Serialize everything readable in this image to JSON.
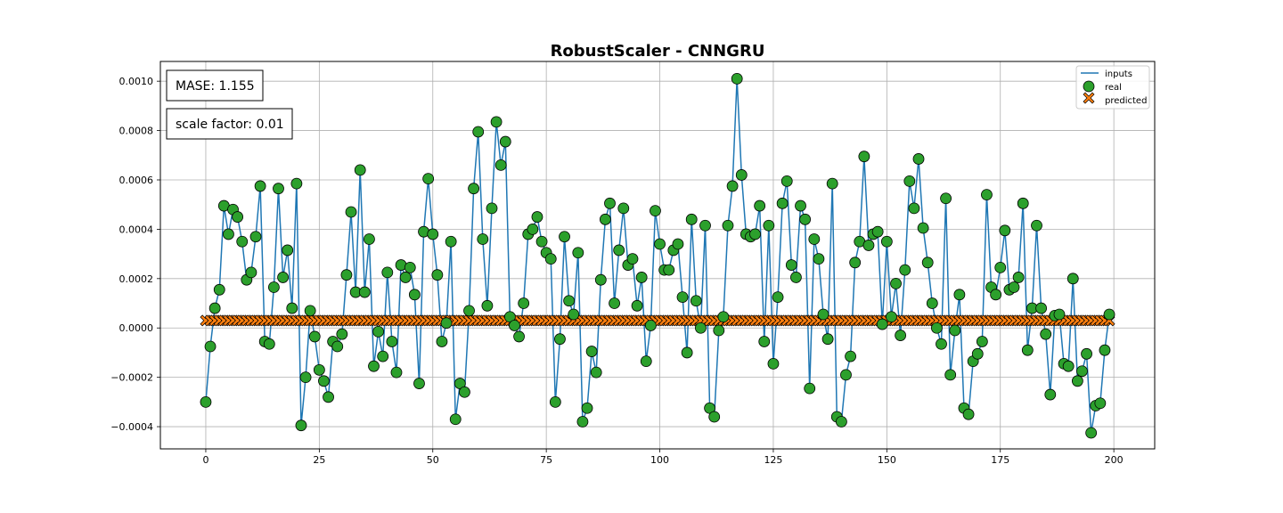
{
  "chart_data": {
    "type": "line",
    "title": "RobustScaler - CNNGRU",
    "xlabel": "",
    "ylabel": "",
    "xlim": [
      -10,
      209
    ],
    "ylim": [
      -0.00049,
      0.00108
    ],
    "xticks": [
      0,
      25,
      50,
      75,
      100,
      125,
      150,
      175,
      200
    ],
    "xtick_labels": [
      "0",
      "25",
      "50",
      "75",
      "100",
      "125",
      "150",
      "175",
      "200"
    ],
    "yticks": [
      -0.0004,
      -0.0002,
      0.0,
      0.0002,
      0.0004,
      0.0006,
      0.0008,
      0.001
    ],
    "ytick_labels": [
      "−0.0004",
      "−0.0002",
      "0.0000",
      "0.0002",
      "0.0004",
      "0.0006",
      "0.0008",
      "0.0010"
    ],
    "grid": true,
    "legend_placement": "top-right",
    "annotations": [
      "MASE: 1.155",
      "scale factor: 0.01"
    ],
    "series": [
      {
        "name": "inputs",
        "style": "line",
        "color": "#1f77b4",
        "note": "line connecting real values"
      },
      {
        "name": "real",
        "style": "marker-circle",
        "color": "#2ca02c",
        "x_start": 0,
        "values": [
          -0.0003,
          -7.5e-05,
          8e-05,
          0.000155,
          0.000495,
          0.00038,
          0.00048,
          0.00045,
          0.00035,
          0.000195,
          0.000225,
          0.00037,
          0.000575,
          -5.5e-05,
          -6.5e-05,
          0.000165,
          0.000565,
          0.000205,
          0.000315,
          8e-05,
          0.000585,
          -0.000395,
          -0.0002,
          7e-05,
          -3.5e-05,
          -0.00017,
          -0.000215,
          -0.00028,
          -5.5e-05,
          -7.5e-05,
          -2.5e-05,
          0.000215,
          0.00047,
          0.000145,
          0.00064,
          0.000145,
          0.00036,
          -0.000155,
          -1.5e-05,
          -0.000115,
          0.000225,
          -5.5e-05,
          -0.00018,
          0.000255,
          0.000205,
          0.000245,
          0.000135,
          -0.000225,
          0.00039,
          0.000605,
          0.00038,
          0.000215,
          -5.5e-05,
          2e-05,
          0.00035,
          -0.00037,
          -0.000225,
          -0.00026,
          7e-05,
          0.000565,
          0.000795,
          0.00036,
          9e-05,
          0.000485,
          0.000835,
          0.00066,
          0.000755,
          4.5e-05,
          1e-05,
          -3.5e-05,
          0.0001,
          0.00038,
          0.0004,
          0.00045,
          0.00035,
          0.000305,
          0.00028,
          -0.0003,
          -4.5e-05,
          0.00037,
          0.00011,
          5.5e-05,
          0.000305,
          -0.00038,
          -0.000325,
          -9.5e-05,
          -0.00018,
          0.000195,
          0.00044,
          0.000505,
          0.0001,
          0.000315,
          0.000485,
          0.000255,
          0.00028,
          9e-05,
          0.000205,
          -0.000135,
          1e-05,
          0.000475,
          0.00034,
          0.000235,
          0.000235,
          0.000315,
          0.00034,
          0.000125,
          -0.0001,
          0.00044,
          0.00011,
          0.0,
          0.000415,
          -0.000325,
          -0.00036,
          -1e-05,
          4.5e-05,
          0.000415,
          0.000575,
          0.00101,
          0.00062,
          0.00038,
          0.00037,
          0.00038,
          0.000495,
          -5.5e-05,
          0.000415,
          -0.000145,
          0.000125,
          0.000505,
          0.000595,
          0.000255,
          0.000205,
          0.000495,
          0.00044,
          -0.000245,
          0.00036,
          0.00028,
          5.5e-05,
          -4.5e-05,
          0.000585,
          -0.00036,
          -0.00038,
          -0.00019,
          -0.000115,
          0.000265,
          0.00035,
          0.000695,
          0.000335,
          0.00038,
          0.00039,
          1.5e-05,
          0.00035,
          4.5e-05,
          0.00018,
          -3e-05,
          0.000235,
          0.000595,
          0.000485,
          0.000685,
          0.000405,
          0.000265,
          0.0001,
          0.0,
          -6.5e-05,
          0.000525,
          -0.00019,
          -1e-05,
          0.000135,
          -0.000325,
          -0.00035,
          -0.000135,
          -0.000105,
          -5.5e-05,
          0.00054,
          0.000165,
          0.000135,
          0.000245,
          0.000395,
          0.000155,
          0.000165,
          0.000205,
          0.000505,
          -9e-05,
          8e-05,
          0.000415,
          8e-05,
          -2.5e-05,
          -0.00027,
          5e-05,
          5.5e-05,
          -0.000145,
          -0.000155,
          0.0002,
          -0.000215,
          -0.000175,
          -0.000105,
          -0.000425,
          -0.000315,
          -0.000305,
          -9e-05,
          5.5e-05
        ]
      },
      {
        "name": "predicted",
        "style": "marker-x",
        "color": "#ff7f0e",
        "x_start": 0,
        "count": 200,
        "constant_value": 3e-05
      }
    ]
  }
}
